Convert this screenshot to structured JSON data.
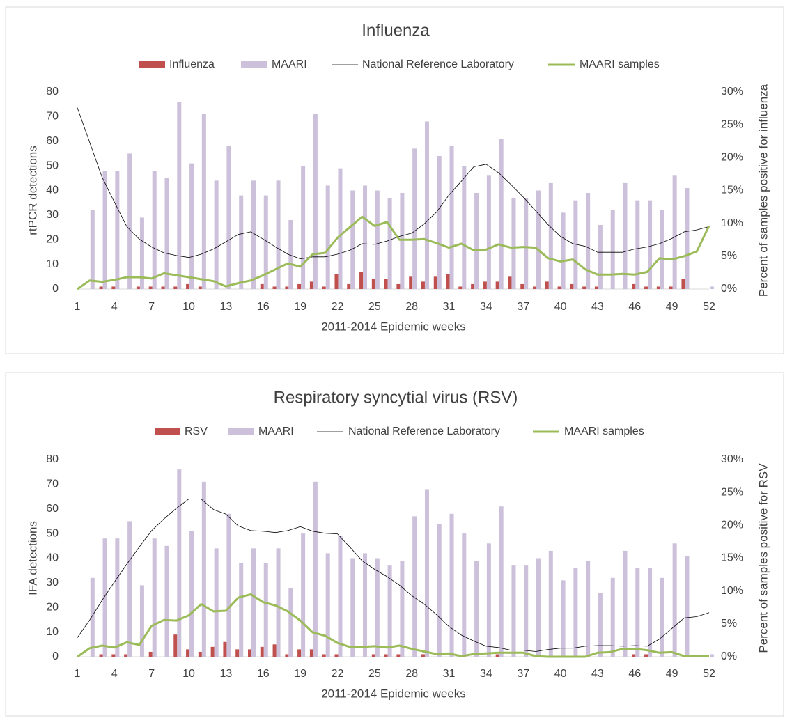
{
  "chart_data": [
    {
      "type": "bar",
      "title": "Influenza",
      "x_label": "2011-2014 Epidemic weeks",
      "y_label": "rtPCR detections",
      "y2_label": "Percent of samples positive for influenza",
      "x": [
        1,
        2,
        3,
        4,
        5,
        6,
        7,
        8,
        9,
        10,
        11,
        12,
        13,
        14,
        15,
        16,
        17,
        18,
        19,
        20,
        21,
        22,
        23,
        24,
        25,
        26,
        27,
        28,
        29,
        30,
        31,
        32,
        33,
        34,
        35,
        36,
        37,
        38,
        39,
        40,
        41,
        42,
        43,
        44,
        45,
        46,
        47,
        48,
        49,
        50,
        51,
        52
      ],
      "xlim": [
        1,
        52
      ],
      "xticks": [
        1,
        4,
        7,
        10,
        13,
        16,
        19,
        22,
        25,
        28,
        31,
        34,
        37,
        40,
        43,
        46,
        49,
        52
      ],
      "ylim": [
        0,
        80
      ],
      "yticks": [
        0,
        10,
        20,
        30,
        40,
        50,
        60,
        70,
        80
      ],
      "y2lim": [
        0,
        30
      ],
      "y2ticks": [
        {
          "value": 0,
          "label": "0%"
        },
        {
          "value": 5,
          "label": "5%"
        },
        {
          "value": 10,
          "label": "10%"
        },
        {
          "value": 15,
          "label": "15%"
        },
        {
          "value": 20,
          "label": "20%"
        },
        {
          "value": 25,
          "label": "25%"
        },
        {
          "value": 30,
          "label": "30%"
        }
      ],
      "legend": "top",
      "series": [
        {
          "name": "Influenza",
          "type": "bar",
          "color": "#c0504d",
          "values": [
            0,
            0,
            1,
            1,
            0,
            1,
            1,
            1,
            1,
            2,
            1,
            0,
            0,
            0,
            0,
            2,
            1,
            1,
            2,
            3,
            1,
            6,
            2,
            7,
            4,
            4,
            2,
            5,
            3,
            5,
            6,
            1,
            2,
            3,
            3,
            5,
            2,
            1,
            3,
            1,
            2,
            1,
            1,
            0,
            0,
            2,
            1,
            1,
            1,
            4,
            0,
            0
          ]
        },
        {
          "name": "MAARI",
          "type": "bar",
          "color": "#ccc0da",
          "values": [
            0,
            32,
            48,
            48,
            55,
            29,
            48,
            45,
            76,
            51,
            71,
            44,
            58,
            38,
            44,
            38,
            44,
            28,
            50,
            71,
            42,
            49,
            40,
            42,
            40,
            37,
            39,
            57,
            68,
            54,
            58,
            50,
            39,
            46,
            61,
            37,
            37,
            40,
            43,
            31,
            36,
            39,
            26,
            32,
            43,
            36,
            36,
            32,
            46,
            41,
            0,
            1
          ]
        },
        {
          "name": "National Reference Laboratory",
          "type": "line",
          "axis": "y2",
          "color": "#000000",
          "values": [
            27.6,
            22.3,
            17.0,
            13.2,
            9.5,
            7.6,
            6.4,
            5.5,
            5.1,
            4.8,
            5.3,
            6.1,
            7.2,
            8.3,
            8.7,
            7.6,
            6.4,
            5.3,
            4.6,
            4.9,
            4.9,
            5.3,
            5.9,
            6.9,
            6.8,
            7.3,
            8.0,
            8.5,
            9.9,
            11.7,
            14.3,
            16.4,
            18.6,
            19.0,
            17.7,
            15.9,
            14.0,
            11.9,
            9.8,
            8.0,
            6.9,
            6.5,
            5.6,
            5.6,
            5.6,
            6.1,
            6.4,
            6.9,
            7.7,
            8.7,
            9.0,
            9.5
          ]
        },
        {
          "name": "MAARI samples",
          "type": "line",
          "axis": "y2",
          "color": "#9bbb59",
          "values": [
            0,
            1.3,
            1.1,
            1.4,
            1.8,
            1.8,
            1.6,
            2.4,
            2.1,
            1.8,
            1.5,
            1.2,
            0.4,
            0.9,
            1.3,
            2.1,
            3.0,
            3.9,
            3.4,
            5.3,
            5.5,
            7.8,
            9.4,
            11.0,
            9.6,
            10.2,
            7.5,
            7.5,
            7.6,
            7.0,
            6.3,
            6.9,
            5.9,
            6.0,
            6.8,
            6.3,
            6.4,
            6.3,
            4.7,
            4.2,
            4.5,
            3.0,
            2.2,
            2.2,
            2.3,
            2.2,
            2.6,
            4.7,
            4.5,
            5.0,
            5.7,
            9.6
          ]
        }
      ]
    },
    {
      "type": "bar",
      "title": "Respiratory syncytial virus (RSV)",
      "x_label": "2011-2014 Epidemic weeks",
      "y_label": "IFA detections",
      "y2_label": "Percent of samples positive for RSV",
      "x": [
        1,
        2,
        3,
        4,
        5,
        6,
        7,
        8,
        9,
        10,
        11,
        12,
        13,
        14,
        15,
        16,
        17,
        18,
        19,
        20,
        21,
        22,
        23,
        24,
        25,
        26,
        27,
        28,
        29,
        30,
        31,
        32,
        33,
        34,
        35,
        36,
        37,
        38,
        39,
        40,
        41,
        42,
        43,
        44,
        45,
        46,
        47,
        48,
        49,
        50,
        51,
        52
      ],
      "xlim": [
        1,
        52
      ],
      "xticks": [
        1,
        4,
        7,
        10,
        13,
        16,
        19,
        22,
        25,
        28,
        31,
        34,
        37,
        40,
        43,
        46,
        49,
        52
      ],
      "ylim": [
        0,
        80
      ],
      "yticks": [
        0,
        10,
        20,
        30,
        40,
        50,
        60,
        70,
        80
      ],
      "y2lim": [
        0,
        30
      ],
      "y2ticks": [
        {
          "value": 0,
          "label": "0%"
        },
        {
          "value": 5,
          "label": "5%"
        },
        {
          "value": 10,
          "label": "10%"
        },
        {
          "value": 15,
          "label": "15%"
        },
        {
          "value": 20,
          "label": "20%"
        },
        {
          "value": 25,
          "label": "25%"
        },
        {
          "value": 30,
          "label": "30%"
        }
      ],
      "legend": "top",
      "series": [
        {
          "name": "RSV",
          "type": "bar",
          "color": "#c0504d",
          "values": [
            0,
            0,
            1,
            1,
            1,
            0,
            2,
            0,
            9,
            3,
            2,
            4,
            6,
            3,
            3,
            4,
            5,
            1,
            3,
            3,
            1,
            1,
            0,
            0,
            1,
            1,
            1,
            0,
            1,
            0,
            0,
            0,
            0,
            0,
            1,
            0,
            0,
            0,
            0,
            0,
            0,
            0,
            0,
            0,
            0,
            1,
            1,
            0,
            0,
            0,
            0,
            0
          ]
        },
        {
          "name": "MAARI",
          "type": "bar",
          "color": "#ccc0da",
          "values": [
            0,
            32,
            48,
            48,
            55,
            29,
            48,
            45,
            76,
            51,
            71,
            44,
            58,
            38,
            44,
            38,
            44,
            28,
            50,
            71,
            42,
            49,
            40,
            42,
            40,
            37,
            39,
            57,
            68,
            54,
            58,
            50,
            39,
            46,
            61,
            37,
            37,
            40,
            43,
            31,
            36,
            39,
            26,
            32,
            43,
            36,
            36,
            32,
            46,
            41,
            0,
            1
          ]
        },
        {
          "name": "National Reference Laboratory",
          "type": "line",
          "axis": "y2",
          "color": "#000000",
          "values": [
            2.9,
            5.6,
            8.6,
            11.4,
            14.1,
            16.7,
            19.2,
            21.0,
            22.6,
            24.0,
            24.0,
            22.4,
            21.7,
            19.9,
            19.2,
            19.1,
            18.9,
            19.2,
            19.8,
            19.1,
            18.8,
            18.7,
            16.7,
            14.6,
            13.3,
            12.2,
            10.9,
            9.3,
            8.0,
            6.4,
            4.6,
            3.3,
            2.4,
            1.6,
            1.4,
            1.0,
            1.0,
            0.8,
            1.1,
            1.3,
            1.3,
            1.6,
            1.7,
            1.7,
            1.6,
            1.7,
            1.6,
            2.7,
            4.3,
            5.9,
            6.1,
            6.7
          ]
        },
        {
          "name": "MAARI samples",
          "type": "line",
          "axis": "y2",
          "color": "#9bbb59",
          "values": [
            0,
            1.3,
            1.7,
            1.4,
            2.2,
            1.8,
            4.7,
            5.6,
            5.5,
            6.3,
            8.0,
            6.9,
            7.0,
            9.0,
            9.5,
            8.3,
            7.8,
            6.9,
            5.5,
            3.7,
            3.2,
            2.1,
            1.5,
            1.5,
            1.6,
            1.4,
            1.7,
            1.2,
            0.8,
            0.4,
            0.5,
            0.1,
            0.4,
            0.5,
            0.6,
            0.6,
            0.6,
            0.1,
            0,
            0,
            0,
            0,
            0.6,
            0.7,
            1.2,
            1.2,
            1.0,
            0.6,
            0.7,
            0.1,
            0.1,
            0.1
          ]
        }
      ]
    }
  ]
}
